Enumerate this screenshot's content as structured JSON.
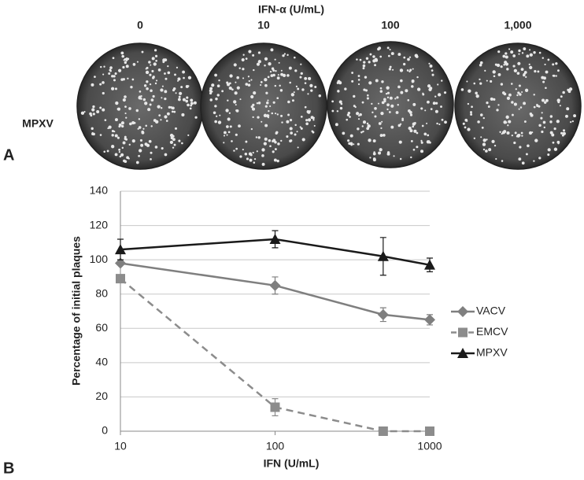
{
  "panel_a": {
    "title": "IFN-α (U/mL)",
    "columns": [
      "0",
      "10",
      "100",
      "1,000"
    ],
    "row_label": "MPXV",
    "label": "A"
  },
  "chart_data": {
    "type": "line",
    "label": "B",
    "x_label": "IFN (U/mL)",
    "y_label": "Percentage of initial plaques",
    "x": [
      10,
      100,
      500,
      1000
    ],
    "xscale": "log",
    "xlim": [
      10,
      1000
    ],
    "xticks": [
      10,
      100,
      1000
    ],
    "ylim": [
      0,
      140
    ],
    "yticks": [
      0,
      20,
      40,
      60,
      80,
      100,
      120,
      140
    ],
    "grid": true,
    "legend": "right",
    "series": [
      {
        "name": "VACV",
        "color": "#7f7f7f",
        "marker": "diamond",
        "dash": false,
        "values": [
          98,
          85,
          68,
          65
        ],
        "errors": [
          1,
          5,
          4,
          3
        ]
      },
      {
        "name": "EMCV",
        "color": "#8c8c8c",
        "marker": "square",
        "dash": true,
        "values": [
          89,
          14,
          0,
          0
        ],
        "errors": [
          2,
          5,
          0,
          0
        ]
      },
      {
        "name": "MPXV",
        "color": "#1a1a1a",
        "marker": "triangle",
        "dash": false,
        "values": [
          106,
          112,
          102,
          97
        ],
        "errors": [
          6,
          5,
          11,
          4
        ]
      }
    ]
  }
}
